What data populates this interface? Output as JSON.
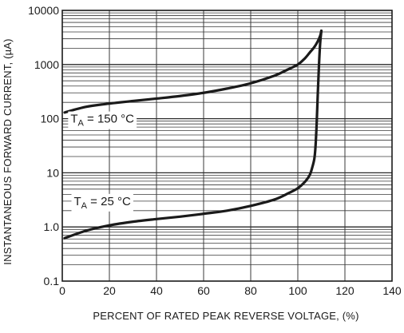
{
  "chart_data": {
    "type": "line",
    "title": "",
    "xlabel": "PERCENT OF RATED PEAK REVERSE VOLTAGE, (%)",
    "ylabel": "INSTANTANEOUS FORWARD CURRENT, (µA)",
    "xlim": [
      0,
      140
    ],
    "ylim": [
      0.1,
      10000
    ],
    "yscale": "log",
    "grid": true,
    "x_ticks": [
      "0",
      "20",
      "40",
      "60",
      "80",
      "100",
      "120",
      "140"
    ],
    "y_ticks": [
      "0.1",
      "1.0",
      "10",
      "100",
      "1000",
      "10000"
    ],
    "series": [
      {
        "name": "",
        "annotation": {
          "prefix": "T",
          "subscript": "A",
          "value": " = 150 °C"
        },
        "points": [
          [
            1,
            130
          ],
          [
            10,
            165
          ],
          [
            20,
            190
          ],
          [
            30,
            212
          ],
          [
            40,
            235
          ],
          [
            50,
            262
          ],
          [
            60,
            300
          ],
          [
            70,
            360
          ],
          [
            80,
            450
          ],
          [
            90,
            620
          ],
          [
            95,
            780
          ],
          [
            100,
            1000
          ],
          [
            103,
            1300
          ],
          [
            105,
            1650
          ],
          [
            107,
            2100
          ],
          [
            108.5,
            2700
          ],
          [
            109.5,
            3400
          ],
          [
            110,
            4200
          ]
        ]
      },
      {
        "name": "",
        "annotation": {
          "prefix": "T",
          "subscript": "A",
          "value": " = 25 °C"
        },
        "points": [
          [
            1,
            0.62
          ],
          [
            10,
            0.85
          ],
          [
            20,
            1.07
          ],
          [
            30,
            1.25
          ],
          [
            40,
            1.4
          ],
          [
            50,
            1.55
          ],
          [
            60,
            1.75
          ],
          [
            70,
            2.0
          ],
          [
            80,
            2.45
          ],
          [
            90,
            3.2
          ],
          [
            96,
            4.2
          ],
          [
            100,
            5.2
          ],
          [
            103,
            6.8
          ],
          [
            105,
            9.0
          ],
          [
            106,
            12
          ],
          [
            107,
            18
          ],
          [
            107.5,
            30
          ],
          [
            108,
            80
          ],
          [
            108.5,
            300
          ],
          [
            109,
            1000
          ],
          [
            109.5,
            2500
          ],
          [
            110,
            4200
          ]
        ]
      }
    ]
  }
}
